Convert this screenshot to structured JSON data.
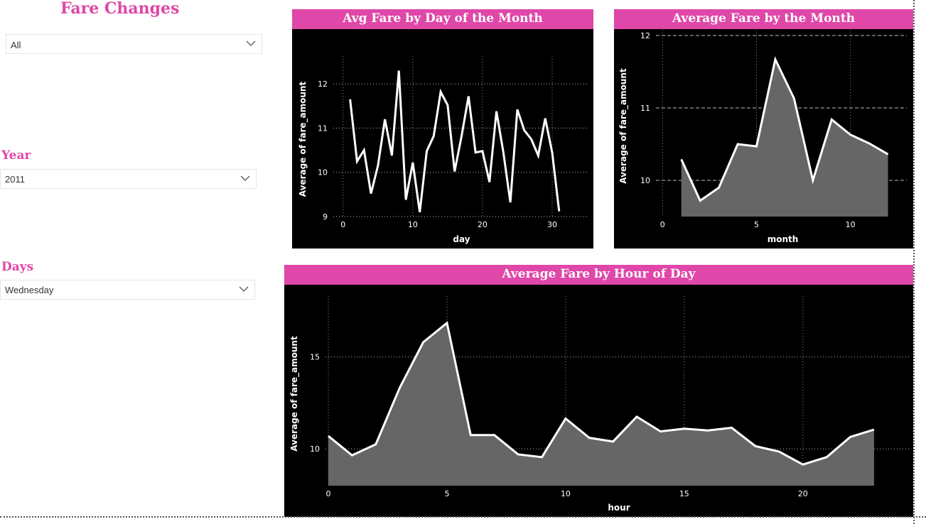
{
  "colors": {
    "accent": "#df47a8",
    "chart_bg": "#000000",
    "area_fill": "#666666",
    "line": "#ffffff"
  },
  "page": {
    "title": "Fare Changes"
  },
  "filters": {
    "top": {
      "value": "All"
    },
    "year": {
      "label": "Year",
      "value": "2011"
    },
    "days": {
      "label": "Days",
      "value": "Wednesday"
    }
  },
  "chart_data": [
    {
      "type": "line",
      "title": "Avg Fare by Day of the Month",
      "xlabel": "day",
      "ylabel": "Average of fare_amount",
      "xlim": [
        -1,
        35
      ],
      "ylim": [
        9,
        12.5
      ],
      "xticks": [
        0,
        10,
        20,
        30
      ],
      "yticks": [
        9,
        10,
        11,
        12
      ],
      "grid": true,
      "x": [
        1,
        2,
        3,
        4,
        5,
        6,
        7,
        8,
        9,
        10,
        11,
        12,
        13,
        14,
        15,
        16,
        17,
        18,
        19,
        20,
        21,
        22,
        23,
        24,
        25,
        26,
        27,
        28,
        29,
        30,
        31
      ],
      "series": [
        {
          "values": [
            11.65,
            10.25,
            10.5,
            9.52,
            10.15,
            11.2,
            10.38,
            12.3,
            9.38,
            10.22,
            9.1,
            10.48,
            10.82,
            11.82,
            11.52,
            10.02,
            10.82,
            11.72,
            10.45,
            10.48,
            9.78,
            11.38,
            10.45,
            9.32,
            11.42,
            10.95,
            10.75,
            10.38,
            11.22,
            10.45,
            9.12
          ]
        }
      ]
    },
    {
      "type": "area",
      "title": "Average Fare by the Month",
      "xlabel": "month",
      "ylabel": "Average of fare_amount",
      "xlim": [
        -0.2,
        13
      ],
      "ylim": [
        9.5,
        12
      ],
      "xticks": [
        0,
        5,
        10
      ],
      "yticks": [
        10,
        11,
        12
      ],
      "grid": true,
      "x": [
        1,
        2,
        3,
        4,
        5,
        6,
        7,
        8,
        9,
        10,
        11,
        12
      ],
      "series": [
        {
          "values": [
            10.29,
            9.72,
            9.9,
            10.5,
            10.47,
            11.67,
            11.13,
            10.0,
            10.84,
            10.63,
            10.51,
            10.36
          ]
        }
      ]
    },
    {
      "type": "area",
      "title": "Average Fare by Hour of Day",
      "xlabel": "hour",
      "ylabel": "Average of fare_amount",
      "xlim": [
        0,
        24.5
      ],
      "ylim": [
        8,
        18
      ],
      "xticks": [
        0,
        5,
        10,
        15,
        20
      ],
      "yticks": [
        10,
        15
      ],
      "grid": true,
      "x": [
        0,
        1,
        2,
        3,
        4,
        5,
        6,
        7,
        8,
        9,
        10,
        11,
        12,
        13,
        14,
        15,
        16,
        17,
        18,
        19,
        20,
        21,
        22,
        23
      ],
      "series": [
        {
          "values": [
            10.7,
            9.65,
            10.25,
            13.3,
            15.8,
            16.85,
            10.75,
            10.75,
            9.7,
            9.55,
            11.65,
            10.6,
            10.4,
            11.75,
            10.95,
            11.1,
            11.0,
            11.15,
            10.15,
            9.85,
            9.15,
            9.55,
            10.65,
            11.05
          ]
        }
      ]
    }
  ]
}
